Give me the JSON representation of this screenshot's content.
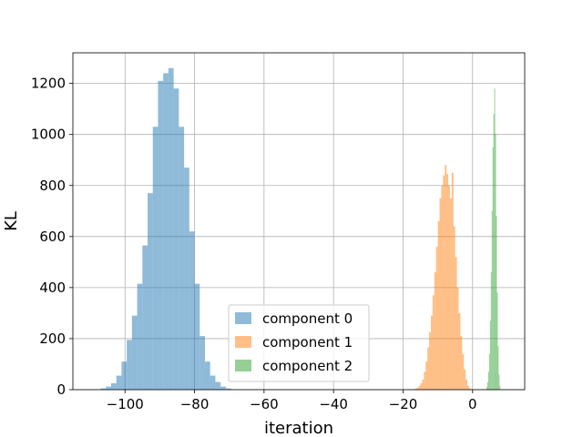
{
  "chart_data": {
    "type": "histogram",
    "title": "",
    "xlabel": "iteration",
    "ylabel": "KL",
    "xlim": [
      -115,
      15
    ],
    "ylim": [
      0,
      1320
    ],
    "xticks": [
      -100,
      -80,
      -60,
      -40,
      -20,
      0
    ],
    "xtick_labels": [
      "−100",
      "−80",
      "−60",
      "−40",
      "−20",
      "0"
    ],
    "yticks": [
      0,
      200,
      400,
      600,
      800,
      1000,
      1200
    ],
    "ytick_labels": [
      "0",
      "200",
      "400",
      "600",
      "800",
      "1000",
      "1200"
    ],
    "grid": true,
    "legend_position": "bottom-center",
    "series": [
      {
        "name": "component 0",
        "color": "#1f77b4",
        "alpha": 0.5,
        "bins": [
          {
            "x0": -107.0,
            "x1": -105.5,
            "count": 5
          },
          {
            "x0": -105.5,
            "x1": -104.0,
            "count": 12
          },
          {
            "x0": -104.0,
            "x1": -102.5,
            "count": 25
          },
          {
            "x0": -102.5,
            "x1": -101.0,
            "count": 55
          },
          {
            "x0": -101.0,
            "x1": -99.5,
            "count": 110
          },
          {
            "x0": -99.5,
            "x1": -98.0,
            "count": 195
          },
          {
            "x0": -98.0,
            "x1": -96.5,
            "count": 290
          },
          {
            "x0": -96.5,
            "x1": -95.0,
            "count": 415
          },
          {
            "x0": -95.0,
            "x1": -93.5,
            "count": 565
          },
          {
            "x0": -93.5,
            "x1": -92.0,
            "count": 770
          },
          {
            "x0": -92.0,
            "x1": -90.5,
            "count": 1030
          },
          {
            "x0": -90.5,
            "x1": -89.0,
            "count": 1210
          },
          {
            "x0": -89.0,
            "x1": -87.5,
            "count": 1240
          },
          {
            "x0": -87.5,
            "x1": -86.0,
            "count": 1260
          },
          {
            "x0": -86.0,
            "x1": -84.5,
            "count": 1180
          },
          {
            "x0": -84.5,
            "x1": -83.0,
            "count": 1030
          },
          {
            "x0": -83.0,
            "x1": -81.5,
            "count": 870
          },
          {
            "x0": -81.5,
            "x1": -80.0,
            "count": 620
          },
          {
            "x0": -80.0,
            "x1": -78.5,
            "count": 415
          },
          {
            "x0": -78.5,
            "x1": -77.0,
            "count": 210
          },
          {
            "x0": -77.0,
            "x1": -75.5,
            "count": 110
          },
          {
            "x0": -75.5,
            "x1": -74.0,
            "count": 55
          },
          {
            "x0": -74.0,
            "x1": -72.5,
            "count": 30
          },
          {
            "x0": -72.5,
            "x1": -71.0,
            "count": 12
          },
          {
            "x0": -71.0,
            "x1": -69.5,
            "count": 5
          }
        ]
      },
      {
        "name": "component 1",
        "color": "#ff7f0e",
        "alpha": 0.5,
        "bins": [
          {
            "x0": -16.5,
            "x1": -16.0,
            "count": 5
          },
          {
            "x0": -16.0,
            "x1": -15.5,
            "count": 8
          },
          {
            "x0": -15.5,
            "x1": -15.0,
            "count": 15
          },
          {
            "x0": -15.0,
            "x1": -14.5,
            "count": 25
          },
          {
            "x0": -14.5,
            "x1": -14.0,
            "count": 40
          },
          {
            "x0": -14.0,
            "x1": -13.5,
            "count": 70
          },
          {
            "x0": -13.5,
            "x1": -13.0,
            "count": 110
          },
          {
            "x0": -13.0,
            "x1": -12.5,
            "count": 165
          },
          {
            "x0": -12.5,
            "x1": -12.0,
            "count": 225
          },
          {
            "x0": -12.0,
            "x1": -11.5,
            "count": 290
          },
          {
            "x0": -11.5,
            "x1": -11.0,
            "count": 370
          },
          {
            "x0": -11.0,
            "x1": -10.5,
            "count": 460
          },
          {
            "x0": -10.5,
            "x1": -10.0,
            "count": 560
          },
          {
            "x0": -10.0,
            "x1": -9.5,
            "count": 660
          },
          {
            "x0": -9.5,
            "x1": -9.0,
            "count": 750
          },
          {
            "x0": -9.0,
            "x1": -8.5,
            "count": 800
          },
          {
            "x0": -8.5,
            "x1": -8.0,
            "count": 840
          },
          {
            "x0": -8.0,
            "x1": -7.5,
            "count": 880
          },
          {
            "x0": -7.5,
            "x1": -7.0,
            "count": 845
          },
          {
            "x0": -7.0,
            "x1": -6.5,
            "count": 800
          },
          {
            "x0": -6.5,
            "x1": -6.0,
            "count": 750
          },
          {
            "x0": -6.0,
            "x1": -5.5,
            "count": 850
          },
          {
            "x0": -5.5,
            "x1": -5.0,
            "count": 640
          },
          {
            "x0": -5.0,
            "x1": -4.5,
            "count": 520
          },
          {
            "x0": -4.5,
            "x1": -4.0,
            "count": 400
          },
          {
            "x0": -4.0,
            "x1": -3.5,
            "count": 300
          },
          {
            "x0": -3.5,
            "x1": -3.0,
            "count": 210
          },
          {
            "x0": -3.0,
            "x1": -2.5,
            "count": 140
          },
          {
            "x0": -2.5,
            "x1": -2.0,
            "count": 80
          },
          {
            "x0": -2.0,
            "x1": -1.5,
            "count": 40
          },
          {
            "x0": -1.5,
            "x1": -1.0,
            "count": 15
          },
          {
            "x0": -1.0,
            "x1": -0.5,
            "count": 5
          }
        ]
      },
      {
        "name": "component 2",
        "color": "#2ca02c",
        "alpha": 0.5,
        "bins": [
          {
            "x0": 4.0,
            "x1": 4.25,
            "count": 10
          },
          {
            "x0": 4.25,
            "x1": 4.5,
            "count": 30
          },
          {
            "x0": 4.5,
            "x1": 4.75,
            "count": 70
          },
          {
            "x0": 4.75,
            "x1": 5.0,
            "count": 140
          },
          {
            "x0": 5.0,
            "x1": 5.25,
            "count": 270
          },
          {
            "x0": 5.25,
            "x1": 5.5,
            "count": 460
          },
          {
            "x0": 5.5,
            "x1": 5.75,
            "count": 700
          },
          {
            "x0": 5.75,
            "x1": 6.0,
            "count": 950
          },
          {
            "x0": 6.0,
            "x1": 6.25,
            "count": 1080
          },
          {
            "x0": 6.25,
            "x1": 6.5,
            "count": 1180
          },
          {
            "x0": 6.5,
            "x1": 6.75,
            "count": 1000
          },
          {
            "x0": 6.75,
            "x1": 7.0,
            "count": 680
          },
          {
            "x0": 7.0,
            "x1": 7.25,
            "count": 380
          },
          {
            "x0": 7.25,
            "x1": 7.5,
            "count": 170
          },
          {
            "x0": 7.5,
            "x1": 7.75,
            "count": 60
          },
          {
            "x0": 7.75,
            "x1": 8.0,
            "count": 15
          }
        ]
      }
    ]
  }
}
